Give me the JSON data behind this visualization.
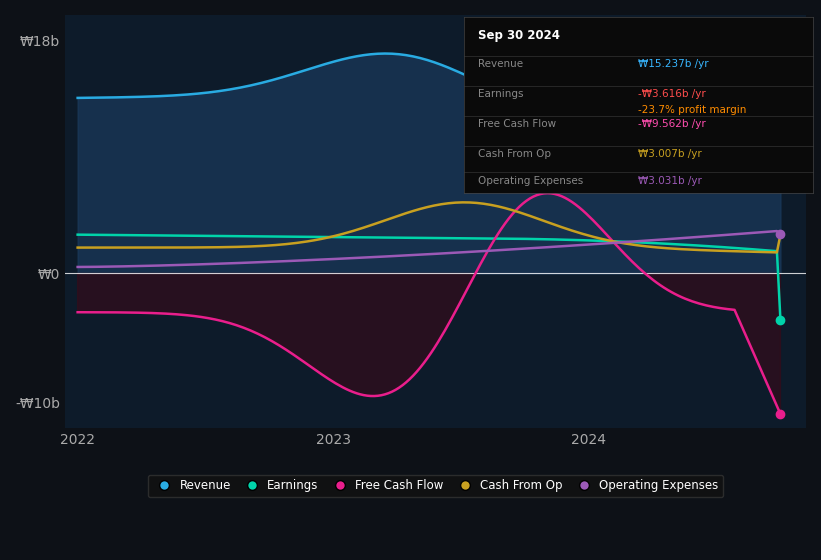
{
  "background_color": "#0d1117",
  "plot_bg_color": "#0d1b2a",
  "y_label_top": "₩18b",
  "y_label_zero": "₩0",
  "y_label_bottom": "-₩10b",
  "x_labels": [
    "2022",
    "2023",
    "2024"
  ],
  "ylim": [
    -12,
    20
  ],
  "info_box": {
    "title": "Sep 30 2024",
    "revenue_label": "Revenue",
    "revenue_value": "₩15.237b /yr",
    "revenue_color": "#38b6ff",
    "earnings_label": "Earnings",
    "earnings_value": "-₩3.616b /yr",
    "earnings_color": "#ff4d4d",
    "margin_value": "-23.7% profit margin",
    "margin_color": "#ff8c00",
    "fcf_label": "Free Cash Flow",
    "fcf_value": "-₩9.562b /yr",
    "fcf_color": "#ff4daf",
    "cashfromop_label": "Cash From Op",
    "cashfromop_value": "₩3.007b /yr",
    "cashfromop_color": "#c8a020",
    "opex_label": "Operating Expenses",
    "opex_value": "₩3.031b /yr",
    "opex_color": "#9b59b6"
  },
  "legend": [
    {
      "label": "Revenue",
      "color": "#29abe2"
    },
    {
      "label": "Earnings",
      "color": "#00d4aa"
    },
    {
      "label": "Free Cash Flow",
      "color": "#e91e8c"
    },
    {
      "label": "Cash From Op",
      "color": "#c8a020"
    },
    {
      "label": "Operating Expenses",
      "color": "#9b59b6"
    }
  ]
}
